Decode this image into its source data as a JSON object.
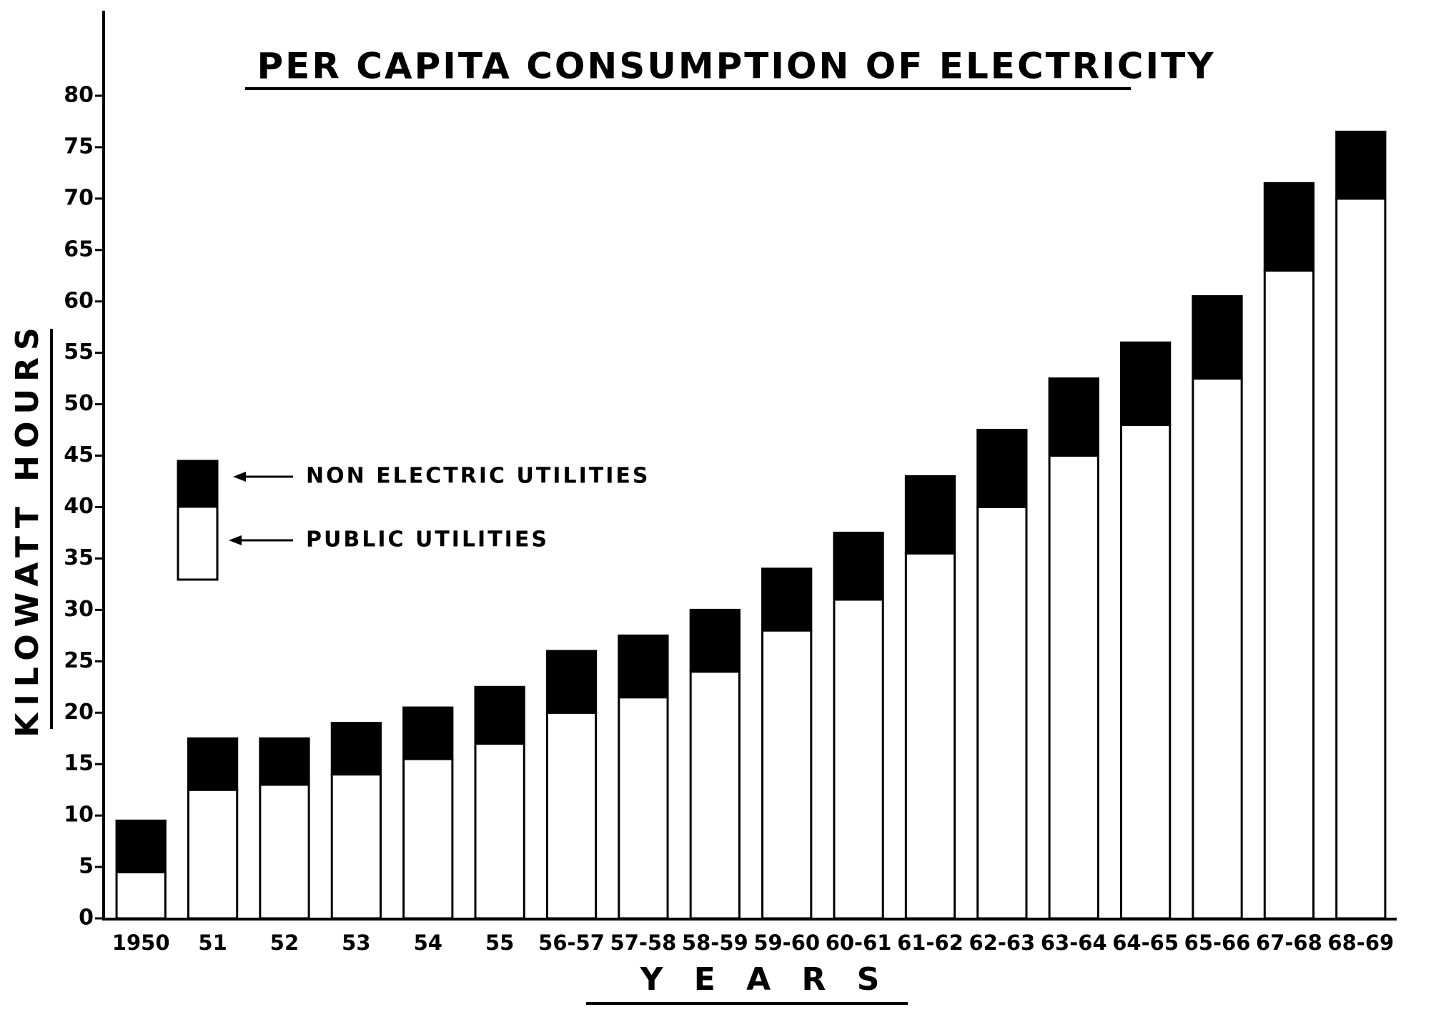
{
  "chart_data": {
    "type": "stacked_bar",
    "title": "PER CAPITA CONSUMPTION OF ELECTRICITY",
    "x_label": "Y E A R S",
    "y_label": "KILOWATT HOURS",
    "categories": [
      "1950",
      "51",
      "52",
      "53",
      "54",
      "55",
      "56-57",
      "57-58",
      "58-59",
      "59-60",
      "60-61",
      "61-62",
      "62-63",
      "63-64",
      "64-65",
      "65-66",
      "67-68",
      "68-69"
    ],
    "series": [
      {
        "name": "PUBLIC UTILITIES",
        "color": "#ffffff",
        "values": [
          4.5,
          12.5,
          13,
          14,
          15.5,
          17,
          20,
          21.5,
          24,
          28,
          31,
          35.5,
          40,
          45,
          48,
          52.5,
          63,
          70
        ]
      },
      {
        "name": "NON ELECTRIC UTILITIES",
        "color": "#000000",
        "values": [
          5,
          5,
          4.5,
          5,
          5,
          5.5,
          6,
          6,
          6,
          6,
          6.5,
          7.5,
          7.5,
          7.5,
          8,
          8,
          8.5,
          6.5
        ]
      }
    ],
    "ylim": [
      0,
      80
    ],
    "yticks": [
      0,
      5,
      10,
      15,
      20,
      25,
      30,
      35,
      40,
      45,
      50,
      55,
      60,
      65,
      70,
      75,
      80
    ]
  }
}
